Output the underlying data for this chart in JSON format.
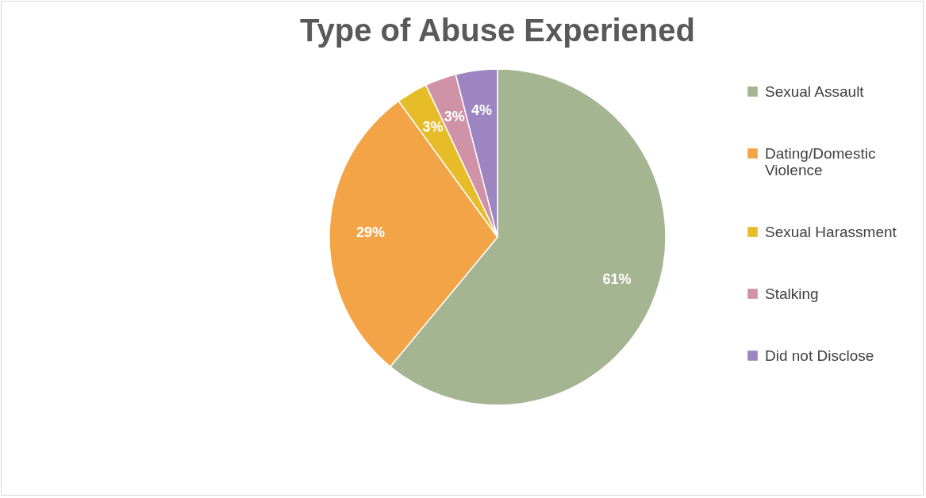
{
  "chart_data": {
    "type": "pie",
    "title": "Type of Abuse Experiened",
    "categories": [
      "Sexual Assault",
      "Dating/Domestic Violence",
      "Sexual Harassment",
      "Stalking",
      "Did not Disclose"
    ],
    "values": [
      61,
      29,
      3,
      3,
      4
    ],
    "colors": [
      "#a5b592",
      "#f3a447",
      "#e7bc29",
      "#d092a7",
      "#9c85c0"
    ],
    "value_labels": [
      "61%",
      "29%",
      "3%",
      "3%",
      "4%"
    ],
    "legend": "right"
  }
}
